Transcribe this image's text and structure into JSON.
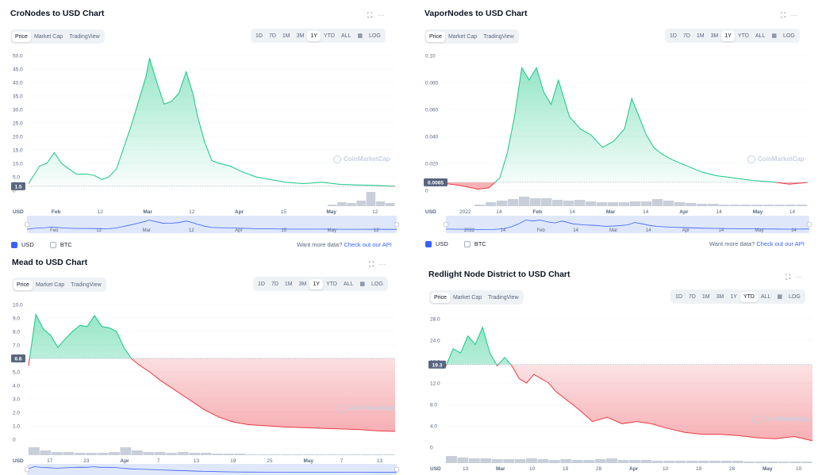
{
  "header_toolbar": {
    "price": "Price",
    "market_cap": "Market Cap",
    "tradingview": "TradingView",
    "log": "LOG",
    "icons": [
      "fullscreen-icon",
      "more-icon",
      "calendar-icon"
    ]
  },
  "footer": {
    "usd": "USD",
    "btc": "BTC",
    "more_prefix": "Want more data?",
    "more_link": "Check out our API"
  },
  "watermark": "CoinMarketCap",
  "colors": {
    "up": "#16c784",
    "down": "#ea3943",
    "accent": "#3861fb",
    "volume": "#c9cfd9"
  },
  "panels": [
    {
      "title": "CroNodes to USD Chart",
      "ranges": [
        "1D",
        "7D",
        "1M",
        "3M",
        "1Y",
        "YTD",
        "ALL"
      ],
      "active_range": "1Y",
      "current_label": "1.5",
      "xlabels": [
        "USD",
        "Feb",
        "12",
        "Mar",
        "12",
        "Apr",
        "15",
        "May",
        "12"
      ],
      "nav_labels": [
        "Feb",
        "12",
        "Mar",
        "12",
        "Apr",
        "15",
        "May",
        "12"
      ]
    },
    {
      "title": "VaporNodes to USD Chart",
      "ranges": [
        "1D",
        "7D",
        "1M",
        "3M",
        "1Y",
        "YTD",
        "ALL"
      ],
      "active_range": "1Y",
      "current_label": "0.0065",
      "xlabels": [
        "USD",
        "2022",
        "14",
        "Feb",
        "14",
        "Mar",
        "14",
        "Apr",
        "14",
        "May",
        "14"
      ],
      "nav_labels": [
        "2022",
        "14",
        "Feb",
        "14",
        "Mar",
        "14",
        "Apr",
        "14",
        "May",
        "14"
      ]
    },
    {
      "title": "Mead to USD Chart",
      "ranges": [
        "1D",
        "7D",
        "1M",
        "3M",
        "1Y",
        "YTD",
        "ALL"
      ],
      "active_range": "1Y",
      "current_label": "6.6",
      "xlabels": [
        "USD",
        "17",
        "23",
        "Apr",
        "7",
        "13",
        "19",
        "25",
        "May",
        "7",
        "13"
      ]
    },
    {
      "title": "Redlight Node District to USD Chart",
      "ranges": [
        "1D",
        "7D",
        "1M",
        "3M",
        "1Y",
        "YTD",
        "ALL"
      ],
      "active_range": "YTD",
      "current_label": "19.3",
      "xlabels": [
        "USD",
        "13",
        "Mar",
        "10",
        "19",
        "28",
        "Apr",
        "10",
        "19",
        "28",
        "May",
        "10"
      ]
    }
  ],
  "chart_data": [
    {
      "type": "line",
      "title": "CroNodes to USD Chart",
      "ylim": [
        0,
        50
      ],
      "yticks": [
        "50.0",
        "45.0",
        "40.0",
        "35.0",
        "30.0",
        "25.0",
        "20.0",
        "15.0",
        "10.0",
        "5.0",
        "0"
      ],
      "baseline": 1.5,
      "x": [
        0,
        3,
        5,
        7,
        9,
        11,
        13,
        16,
        18,
        20,
        22,
        24,
        26,
        28,
        30,
        32,
        33,
        35,
        37,
        39,
        41,
        43,
        45,
        46,
        48,
        50,
        52,
        55,
        58,
        62,
        66,
        70,
        75,
        80,
        85,
        90,
        95,
        100
      ],
      "values": [
        2.5,
        9,
        10,
        14,
        10,
        8,
        6,
        6,
        5.5,
        4,
        5,
        8,
        16,
        24,
        33,
        42,
        49,
        40,
        32,
        33,
        36,
        44,
        35,
        28,
        18,
        11,
        10,
        9,
        7,
        5,
        4,
        3,
        2.5,
        3,
        2.2,
        2,
        1.8,
        1.5
      ],
      "volume": [
        0,
        0,
        0,
        0,
        0,
        0,
        0,
        0,
        0,
        0,
        0,
        0,
        0,
        0,
        0,
        0,
        0,
        0,
        0,
        0,
        0,
        0,
        0,
        0,
        0,
        0,
        0,
        0,
        0,
        0,
        0,
        0.1,
        0.25,
        0.2,
        0.35,
        0.9,
        0.3,
        0.2
      ]
    },
    {
      "type": "line",
      "title": "VaporNodes to USD Chart",
      "ylim": [
        0,
        0.11
      ],
      "yticks": [
        "0.10",
        "0.080",
        "0.060",
        "0.040",
        "0.020",
        "0"
      ],
      "baseline": 0.0065,
      "x": [
        0,
        5,
        10,
        13,
        16,
        18,
        20,
        22,
        24,
        26,
        28,
        30,
        32,
        35,
        38,
        41,
        44,
        47,
        50,
        52,
        54,
        56,
        58,
        60,
        63,
        67,
        71,
        75,
        80,
        85,
        90,
        95,
        100
      ],
      "values": [
        0.006,
        0.004,
        0.001,
        0.002,
        0.01,
        0.03,
        0.06,
        0.1,
        0.09,
        0.1,
        0.08,
        0.07,
        0.09,
        0.06,
        0.05,
        0.045,
        0.035,
        0.04,
        0.05,
        0.075,
        0.06,
        0.045,
        0.035,
        0.03,
        0.025,
        0.02,
        0.015,
        0.012,
        0.01,
        0.008,
        0.007,
        0.005,
        0.0065
      ],
      "volume": [
        0,
        0,
        0,
        0.1,
        0.25,
        0.35,
        0.45,
        0.6,
        0.5,
        0.5,
        0.4,
        0.35,
        0.4,
        0.3,
        0.25,
        0.25,
        0.25,
        0.3,
        0.3,
        0.45,
        0.35,
        0.25,
        0.2,
        0.15,
        0.15,
        0.1,
        0.1,
        0.1,
        0.1,
        0.1,
        0.1,
        0.1,
        0.1
      ]
    },
    {
      "type": "line",
      "title": "Mead to USD Chart",
      "ylim": [
        0,
        11
      ],
      "yticks": [
        "10.0",
        "9.0",
        "8.0",
        "7.0",
        "6.0",
        "5.0",
        "4.0",
        "3.0",
        "2.0",
        "1.0",
        "0"
      ],
      "baseline": 6.6,
      "x": [
        0,
        2,
        4,
        6,
        8,
        10,
        12,
        14,
        16,
        18,
        20,
        22,
        24,
        26,
        28,
        30,
        33,
        36,
        40,
        44,
        48,
        52,
        56,
        60,
        65,
        70,
        75,
        80,
        85,
        90,
        95,
        100
      ],
      "values": [
        6,
        10.2,
        9,
        8.5,
        7.5,
        8.2,
        8.8,
        9.3,
        9.2,
        10.1,
        9.2,
        9.1,
        8.8,
        7.5,
        6.6,
        6.1,
        5.5,
        4.8,
        4,
        3.2,
        2.4,
        1.8,
        1.4,
        1.2,
        1.1,
        1.0,
        0.95,
        0.9,
        0.85,
        0.8,
        0.7,
        0.65
      ],
      "volume": [
        0.5,
        0.3,
        0.2,
        0.2,
        0.15,
        0.15,
        0.15,
        0.2,
        0.5,
        0.3,
        0.2,
        0.2,
        0.15,
        0.2,
        0.15,
        0.15,
        0.1,
        0.1,
        0.1,
        0.05,
        0.05,
        0.05,
        0.05,
        0.05,
        0.05,
        0.05,
        0.05,
        0.05,
        0.05,
        0.05,
        0.05,
        0.05
      ]
    },
    {
      "type": "line",
      "title": "Redlight Node District to USD Chart",
      "ylim": [
        0,
        30
      ],
      "yticks": [
        "28.0",
        "24.0",
        "16.0",
        "12.0",
        "8.0",
        "4.0",
        "0"
      ],
      "baseline": 19.3,
      "x": [
        0,
        2,
        4,
        6,
        8,
        10,
        12,
        14,
        16,
        18,
        20,
        22,
        24,
        26,
        28,
        30,
        33,
        36,
        40,
        44,
        48,
        52,
        56,
        60,
        65,
        70,
        75,
        80,
        85,
        90,
        95,
        100
      ],
      "values": [
        19,
        23,
        22,
        26,
        24,
        28,
        22,
        19,
        21,
        19,
        16,
        15,
        17,
        16,
        15,
        13,
        11,
        9,
        6,
        7,
        5.5,
        6,
        5.5,
        4.5,
        3.5,
        3,
        3,
        2.7,
        2.2,
        2,
        2.5,
        1.5
      ],
      "volume": [
        0.45,
        0.35,
        0.3,
        0.3,
        0.25,
        0.25,
        0.25,
        0.3,
        0.25,
        0.2,
        0.25,
        0.2,
        0.2,
        0.25,
        0.3,
        0.2,
        0.2,
        0.2,
        0.15,
        0.15,
        0.15,
        0.15,
        0.15,
        0.15,
        0.15,
        0.15,
        0.1,
        0.1,
        0.1,
        0.1,
        0.1,
        0.1
      ]
    }
  ]
}
